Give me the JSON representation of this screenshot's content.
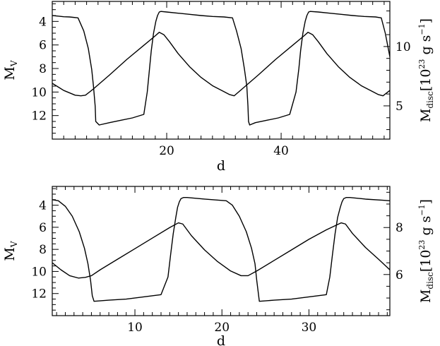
{
  "chart_data": [
    {
      "type": "line",
      "xlabel": "d",
      "ylabel_left": {
        "base": "M",
        "sub": "V"
      },
      "ylabel_right": {
        "base": "M",
        "sub": "disc",
        "bracket_open": "[10",
        "sup": "23",
        "unit": " g s",
        "unit_sup": "−1",
        "bracket_close": "]"
      },
      "xlim": [
        0,
        59
      ],
      "ylim_left": [
        14,
        2.3
      ],
      "ylim_right": [
        2.2,
        13.8
      ],
      "x_ticks_major": [
        20,
        40
      ],
      "x_tick_labels": [
        "20",
        "40"
      ],
      "x_minor_step": 2,
      "y_left_ticks": [
        4,
        6,
        8,
        10,
        12
      ],
      "y_left_tick_labels": [
        "4",
        "6",
        "8",
        "10",
        "12"
      ],
      "y_left_minor_step": 0.5,
      "y_right_ticks": [
        5,
        10
      ],
      "y_right_tick_labels": [
        "5",
        "10"
      ],
      "y_right_minor_step": 1,
      "series": [
        {
          "axis": "left",
          "x": [
            0,
            1,
            2,
            3,
            3.6,
            4.5,
            5.5,
            6.3,
            6.9,
            7.2,
            7.5,
            7.6,
            8.2,
            10,
            12,
            14,
            16,
            16.6,
            17.0,
            17.3,
            17.7,
            18.1,
            18.4,
            18.7,
            19.0,
            20,
            22,
            24,
            26,
            28,
            30,
            31.5,
            32.2,
            33.0,
            33.6,
            34.0,
            34.2,
            34.3,
            34.5,
            35.5,
            37.5,
            39.5,
            41.5,
            42.6,
            43.1,
            43.4,
            43.8,
            44.2,
            44.5,
            44.8,
            45.1,
            46.5,
            48.5,
            50.5,
            52.5,
            54.5,
            56.5,
            57.5,
            58.2,
            59
          ],
          "y": [
            3.5,
            3.55,
            3.6,
            3.62,
            3.65,
            3.7,
            4.8,
            6.3,
            8.1,
            9.5,
            11.2,
            12.5,
            12.8,
            12.6,
            12.4,
            12.2,
            11.9,
            10.0,
            8.0,
            6.5,
            5.0,
            4.0,
            3.5,
            3.2,
            3.15,
            3.2,
            3.3,
            3.4,
            3.5,
            3.58,
            3.62,
            3.7,
            4.8,
            6.3,
            8.1,
            9.5,
            11.2,
            12.5,
            12.8,
            12.6,
            12.4,
            12.2,
            11.9,
            10.0,
            8.0,
            6.5,
            5.0,
            4.0,
            3.5,
            3.2,
            3.15,
            3.2,
            3.3,
            3.4,
            3.5,
            3.58,
            3.62,
            3.7,
            5.0,
            7.0
          ]
        },
        {
          "axis": "right",
          "x": [
            0,
            1,
            2,
            3,
            4,
            5,
            5.8,
            7,
            10,
            13,
            16,
            18,
            18.7,
            19.5,
            20.5,
            22,
            24,
            26,
            28,
            30,
            31,
            31.8,
            33,
            36,
            39,
            42,
            44,
            44.7,
            45.5,
            46.5,
            48,
            50,
            52,
            54,
            56,
            57,
            57.8,
            59
          ],
          "y": [
            6.9,
            6.6,
            6.3,
            6.1,
            5.9,
            5.85,
            5.9,
            6.35,
            7.6,
            8.9,
            10.1,
            10.9,
            11.2,
            11.0,
            10.4,
            9.4,
            8.3,
            7.4,
            6.7,
            6.2,
            5.95,
            5.85,
            6.35,
            7.6,
            8.9,
            10.1,
            10.9,
            11.2,
            11.0,
            10.4,
            9.4,
            8.3,
            7.4,
            6.7,
            6.2,
            5.95,
            5.85,
            6.3
          ]
        }
      ]
    },
    {
      "type": "line",
      "xlabel": "d",
      "ylabel_left": {
        "base": "M",
        "sub": "V"
      },
      "ylabel_right": {
        "base": "M",
        "sub": "disc",
        "bracket_open": "[10",
        "sup": "23",
        "unit": " g s",
        "unit_sup": "−1",
        "bracket_close": "]"
      },
      "xlim": [
        0.5,
        39.3
      ],
      "ylim_left": [
        14,
        2.3
      ],
      "ylim_right": [
        4.25,
        9.75
      ],
      "x_ticks_major": [
        10,
        20,
        30
      ],
      "x_tick_labels": [
        "10",
        "20",
        "30"
      ],
      "x_minor_step": 1,
      "y_left_ticks": [
        4,
        6,
        8,
        10,
        12
      ],
      "y_left_tick_labels": [
        "4",
        "6",
        "8",
        "10",
        "12"
      ],
      "y_left_minor_step": 0.5,
      "y_right_ticks": [
        6,
        8
      ],
      "y_right_tick_labels": [
        "6",
        "8"
      ],
      "y_right_minor_step": 0.5,
      "series": [
        {
          "axis": "left",
          "x": [
            0.5,
            1.2,
            2,
            2.8,
            3.6,
            4.2,
            4.6,
            4.9,
            5.1,
            5.3,
            7,
            9,
            11,
            13,
            13.8,
            14.1,
            14.4,
            14.7,
            14.9,
            15.1,
            15.3,
            15.6,
            16,
            18,
            20.5,
            21.2,
            22,
            22.8,
            23.4,
            23.8,
            24.0,
            24.3,
            26,
            28,
            30,
            32,
            32.4,
            32.7,
            33.0,
            33.3,
            33.6,
            33.8,
            34.0,
            34.3,
            34.7,
            36.5,
            38.5,
            39.3
          ],
          "y": [
            3.5,
            3.6,
            4.1,
            5.0,
            6.4,
            7.9,
            9.3,
            10.8,
            12.2,
            12.7,
            12.6,
            12.5,
            12.3,
            12.1,
            10.5,
            8.5,
            6.6,
            5.1,
            4.2,
            3.7,
            3.4,
            3.3,
            3.3,
            3.45,
            3.6,
            4.0,
            5.0,
            6.4,
            7.9,
            9.3,
            10.8,
            12.7,
            12.6,
            12.5,
            12.3,
            12.1,
            10.5,
            8.5,
            6.6,
            5.1,
            4.2,
            3.7,
            3.4,
            3.3,
            3.3,
            3.45,
            3.55,
            3.6
          ]
        },
        {
          "axis": "right",
          "x": [
            0.5,
            1.5,
            2.5,
            3.5,
            4.3,
            5.0,
            6,
            8,
            10,
            12,
            14,
            15.0,
            15.5,
            16.5,
            18,
            19.5,
            21,
            22.2,
            23.0,
            24,
            26,
            28,
            30,
            32,
            33.7,
            34.2,
            35,
            36.5,
            38,
            39.3
          ],
          "y": [
            6.5,
            6.2,
            5.95,
            5.85,
            5.88,
            5.95,
            6.2,
            6.65,
            7.1,
            7.55,
            8.0,
            8.2,
            8.15,
            7.65,
            7.05,
            6.55,
            6.15,
            5.95,
            5.95,
            6.15,
            6.6,
            7.05,
            7.5,
            7.9,
            8.2,
            8.15,
            7.75,
            7.15,
            6.65,
            6.2
          ]
        }
      ]
    }
  ]
}
